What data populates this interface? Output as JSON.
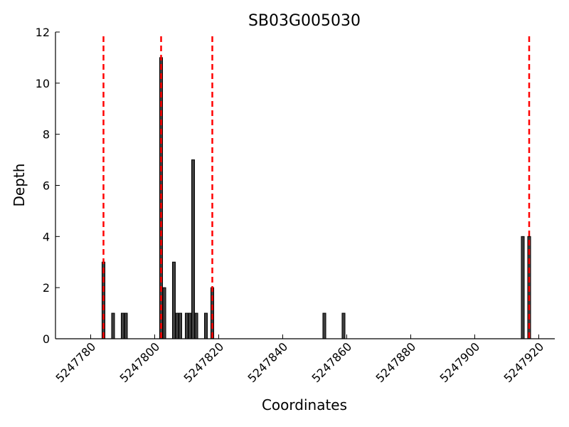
{
  "chart_data": {
    "type": "bar",
    "title": "SB03G005030",
    "xlabel": "Coordinates",
    "ylabel": "Depth",
    "xlim": [
      5247769,
      5247925
    ],
    "ylim": [
      0,
      12
    ],
    "xticks": [
      5247780,
      5247800,
      5247820,
      5247840,
      5247860,
      5247880,
      5247900,
      5247920
    ],
    "yticks": [
      0,
      2,
      4,
      6,
      8,
      10,
      12
    ],
    "bar_color": "#404040",
    "line_color": "#ff0000",
    "bars": [
      {
        "x": 5247784,
        "depth": 3
      },
      {
        "x": 5247787,
        "depth": 1
      },
      {
        "x": 5247790,
        "depth": 1
      },
      {
        "x": 5247791,
        "depth": 1
      },
      {
        "x": 5247802,
        "depth": 11
      },
      {
        "x": 5247803,
        "depth": 2
      },
      {
        "x": 5247806,
        "depth": 3
      },
      {
        "x": 5247807,
        "depth": 1
      },
      {
        "x": 5247808,
        "depth": 1
      },
      {
        "x": 5247810,
        "depth": 1
      },
      {
        "x": 5247811,
        "depth": 1
      },
      {
        "x": 5247812,
        "depth": 7
      },
      {
        "x": 5247813,
        "depth": 1
      },
      {
        "x": 5247816,
        "depth": 1
      },
      {
        "x": 5247818,
        "depth": 2
      },
      {
        "x": 5247853,
        "depth": 1
      },
      {
        "x": 5247859,
        "depth": 1
      },
      {
        "x": 5247915,
        "depth": 4
      },
      {
        "x": 5247917,
        "depth": 4
      }
    ],
    "boundary_lines": [
      5247784,
      5247802,
      5247818,
      5247917
    ]
  }
}
